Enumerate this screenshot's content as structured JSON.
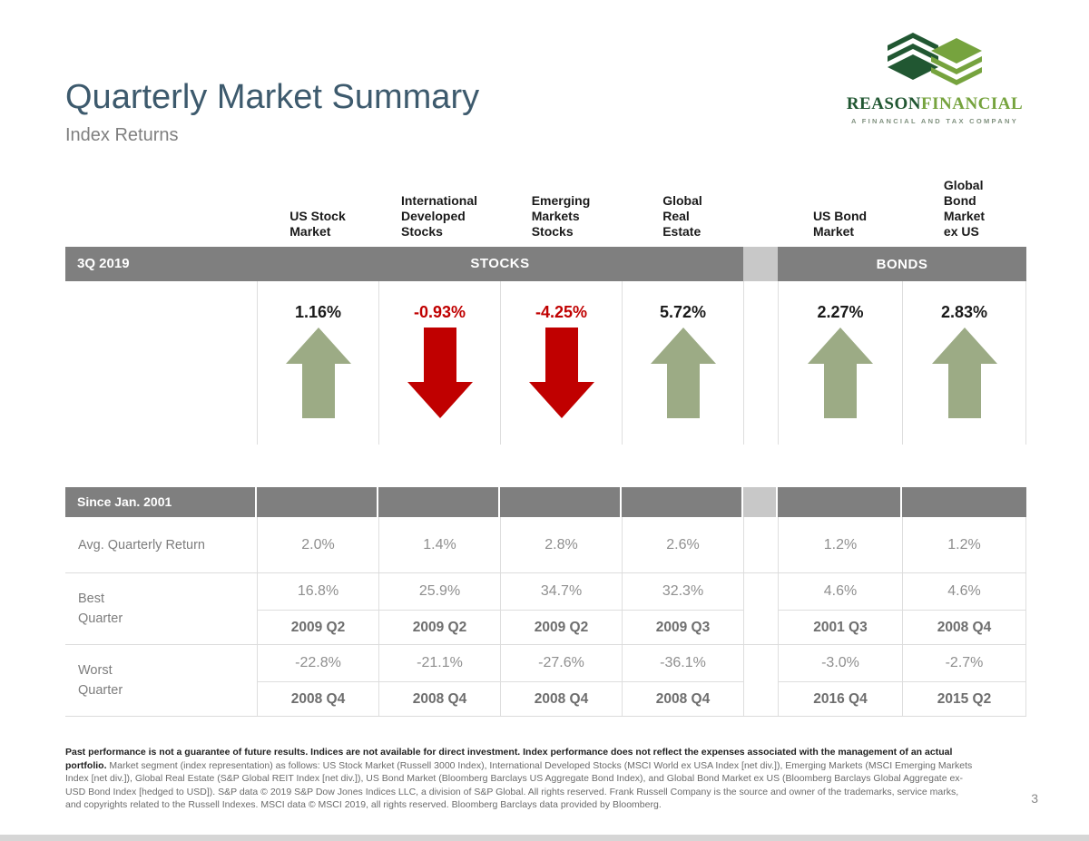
{
  "header": {
    "title": "Quarterly Market Summary",
    "subtitle": "Index Returns"
  },
  "logo": {
    "brand_primary": "REASON",
    "brand_secondary": "FINANCIAL",
    "tagline": "A FINANCIAL AND TAX COMPANY"
  },
  "colors": {
    "accent_green": "#9cab85",
    "accent_red": "#c00000",
    "band_gray": "#7f7f7f",
    "gap_gray": "#c8c8c8",
    "brand_dark_green": "#215732",
    "brand_light_green": "#76a33e"
  },
  "table": {
    "period_label": "3Q 2019",
    "groups": {
      "stocks": "STOCKS",
      "bonds": "BONDS"
    },
    "since_label": "Since Jan. 2001",
    "row_labels": {
      "avg": "Avg. Quarterly Return",
      "best": "Best\nQuarter",
      "worst": "Worst\nQuarter"
    },
    "columns": [
      {
        "label": "US Stock\nMarket",
        "group": "stocks",
        "return": "1.16%",
        "direction": "up",
        "avg": "2.0%",
        "best_return": "16.8%",
        "best_quarter": "2009 Q2",
        "worst_return": "-22.8%",
        "worst_quarter": "2008 Q4"
      },
      {
        "label": "International\nDeveloped\nStocks",
        "group": "stocks",
        "return": "-0.93%",
        "direction": "down",
        "avg": "1.4%",
        "best_return": "25.9%",
        "best_quarter": "2009 Q2",
        "worst_return": "-21.1%",
        "worst_quarter": "2008 Q4"
      },
      {
        "label": "Emerging\nMarkets\nStocks",
        "group": "stocks",
        "return": "-4.25%",
        "direction": "down",
        "avg": "2.8%",
        "best_return": "34.7%",
        "best_quarter": "2009 Q2",
        "worst_return": "-27.6%",
        "worst_quarter": "2008 Q4"
      },
      {
        "label": "Global\nReal\nEstate",
        "group": "stocks",
        "return": "5.72%",
        "direction": "up",
        "avg": "2.6%",
        "best_return": "32.3%",
        "best_quarter": "2009 Q3",
        "worst_return": "-36.1%",
        "worst_quarter": "2008 Q4"
      },
      {
        "label": "US Bond\nMarket",
        "group": "bonds",
        "return": "2.27%",
        "direction": "up",
        "avg": "1.2%",
        "best_return": "4.6%",
        "best_quarter": "2001 Q3",
        "worst_return": "-3.0%",
        "worst_quarter": "2016 Q4"
      },
      {
        "label": "Global\nBond\nMarket\nex US",
        "group": "bonds",
        "return": "2.83%",
        "direction": "up",
        "avg": "1.2%",
        "best_return": "4.6%",
        "best_quarter": "2008 Q4",
        "worst_return": "-2.7%",
        "worst_quarter": "2015 Q2"
      }
    ]
  },
  "footer": {
    "disclaimer_bold": "Past performance is not a guarantee of future results. Indices are not available for direct investment. Index performance does not reflect the expenses associated with the management of an actual portfolio.",
    "disclaimer_text": "Market segment (index representation) as follows: US Stock Market (Russell 3000 Index), International Developed Stocks (MSCI World ex USA Index [net div.]), Emerging Markets (MSCI Emerging Markets Index [net div.]), Global Real Estate (S&P Global REIT Index [net div.]), US Bond Market (Bloomberg Barclays US Aggregate Bond Index), and Global Bond Market ex US (Bloomberg Barclays Global Aggregate ex-USD Bond Index [hedged to USD]). S&P data © 2019 S&P Dow Jones Indices LLC, a division of S&P Global. All rights reserved. Frank Russell Company is the source and owner of the trademarks, service marks, and copyrights related to the Russell Indexes. MSCI data © MSCI 2019, all rights reserved. Bloomberg Barclays data provided by Bloomberg.",
    "page_number": "3"
  }
}
